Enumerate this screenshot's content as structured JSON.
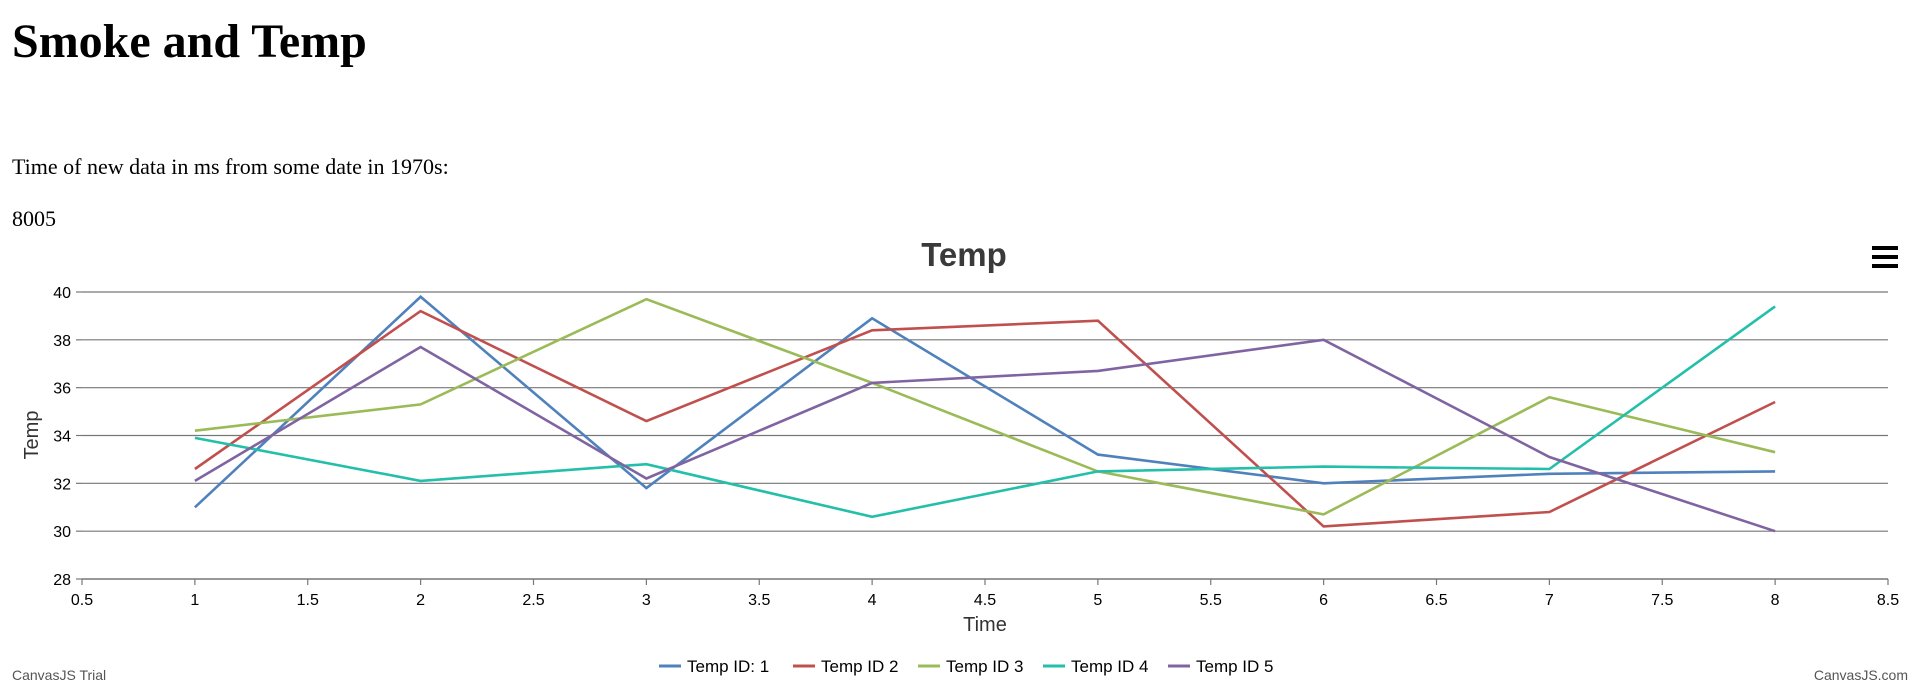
{
  "page": {
    "title": "Smoke and Temp",
    "info_label": "Time of new data in ms from some date in 1970s:",
    "info_value": "8005"
  },
  "chart_menu_icon": "hamburger-menu-icon",
  "watermark_left": "CanvasJS Trial",
  "watermark_right": "CanvasJS.com",
  "chart_data": {
    "type": "line",
    "title": "Temp",
    "xlabel": "Time",
    "ylabel": "Temp",
    "xlim": [
      0.5,
      8.5
    ],
    "ylim": [
      28,
      40
    ],
    "x_ticks": [
      "0.5",
      "1",
      "1.5",
      "2",
      "2.5",
      "3",
      "3.5",
      "4",
      "4.5",
      "5",
      "5.5",
      "6",
      "6.5",
      "7",
      "7.5",
      "8",
      "8.5"
    ],
    "y_ticks": [
      "28",
      "30",
      "32",
      "34",
      "36",
      "38",
      "40"
    ],
    "grid": true,
    "legend_position": "bottom",
    "x": [
      1,
      2,
      3,
      4,
      5,
      6,
      7,
      8
    ],
    "series": [
      {
        "name": "Temp ID: 1",
        "color": "#4f81bc",
        "values": [
          31.0,
          39.8,
          31.8,
          38.9,
          33.2,
          32.0,
          32.4,
          32.5
        ]
      },
      {
        "name": "Temp ID 2",
        "color": "#c0504e",
        "values": [
          32.6,
          39.2,
          34.6,
          38.4,
          38.8,
          30.2,
          30.8,
          35.4
        ]
      },
      {
        "name": "Temp ID 3",
        "color": "#9bbb58",
        "values": [
          34.2,
          35.3,
          39.7,
          36.2,
          32.5,
          30.7,
          35.6,
          33.3
        ]
      },
      {
        "name": "Temp ID 4",
        "color": "#23bfaa",
        "values": [
          33.9,
          32.1,
          32.8,
          30.6,
          32.5,
          32.7,
          32.6,
          39.4
        ]
      },
      {
        "name": "Temp ID 5",
        "color": "#8064a1",
        "values": [
          32.1,
          37.7,
          32.2,
          36.2,
          36.7,
          38.0,
          33.1,
          30.0
        ]
      }
    ]
  }
}
